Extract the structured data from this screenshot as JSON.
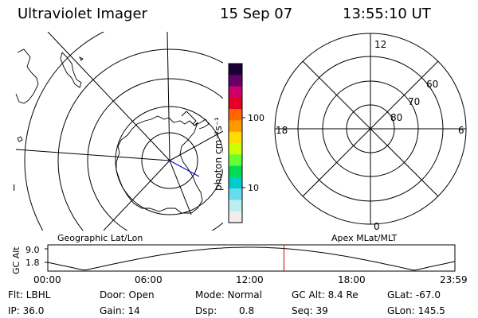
{
  "header": {
    "instrument": "Ultraviolet Imager",
    "date": "15 Sep 07",
    "time": "13:55:10 UT"
  },
  "geo_map": {
    "label": "Geographic Lat/Lon",
    "edge_tick": "I"
  },
  "colorbar": {
    "unit_label": "photon cm⁻²s⁻¹",
    "ticks": [
      "100",
      "10"
    ],
    "colors": [
      "#1a0033",
      "#660066",
      "#cc0066",
      "#e60026",
      "#ff6600",
      "#ff9900",
      "#ffdd00",
      "#ccff00",
      "#66ff33",
      "#00dd55",
      "#00cccc",
      "#66ddee",
      "#bbeeee",
      "#eeeeee"
    ]
  },
  "polar_plot": {
    "label": "Apex MLat/MLT",
    "mlt_labels": [
      "12",
      "18",
      "6",
      "0"
    ],
    "mlat_labels": [
      "60",
      "70",
      "80"
    ]
  },
  "altitude_strip": {
    "y_axis_label": "GC Alt",
    "y_ticks": [
      "9.0",
      "1.8"
    ],
    "x_ticks": [
      "00:00",
      "06:00",
      "12:00",
      "18:00",
      "23:59"
    ],
    "current_time_hours": 13.92,
    "marker_color": "#cc0000"
  },
  "status": {
    "filter": "Flt: LBHL",
    "door": "Door: Open",
    "mode": "Mode: Normal",
    "gc_alt": "GC Alt: 8.4 Re",
    "glat": "GLat: -67.0",
    "ip": "IP: 36.0",
    "gain": "Gain: 14",
    "dsp_label": "Dsp:",
    "dsp_value": "0.8",
    "seq": "Seq: 39",
    "glon": "GLon: 145.5"
  }
}
